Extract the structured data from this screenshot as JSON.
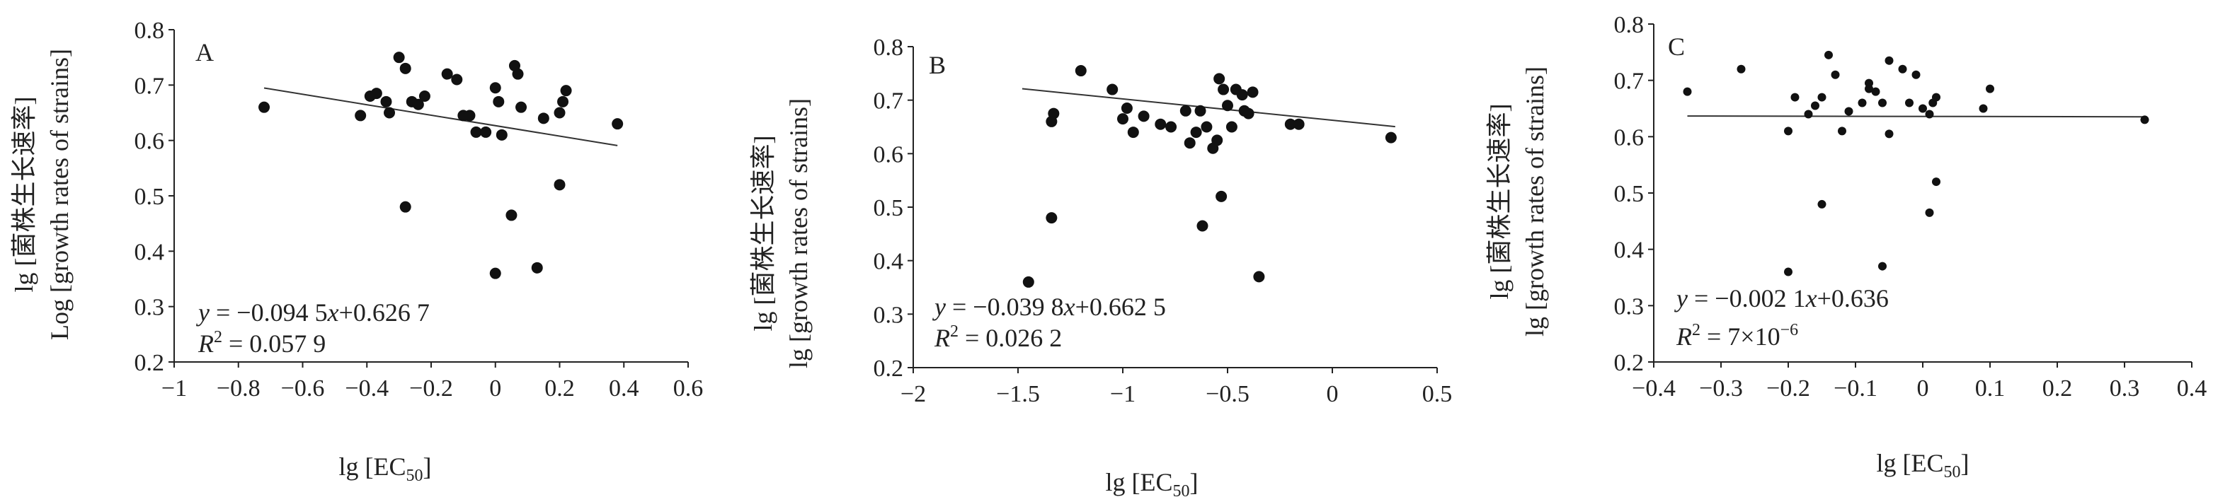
{
  "chart_data": [
    {
      "type": "scatter",
      "panel_label": "A",
      "ylabel": [
        "lg [菌株生长速率]",
        "Log [growth rates of strains]"
      ],
      "xlabel": {
        "main": "lg [EC",
        "sub": "50",
        "close": "]"
      },
      "xlim": [
        -1,
        0.6
      ],
      "ylim": [
        0.2,
        0.8
      ],
      "xticks": [
        -1,
        -0.8,
        -0.6,
        -0.4,
        -0.2,
        0,
        0.2,
        0.4,
        0.6
      ],
      "xtick_labels": [
        "−1",
        "−0.8",
        "−0.6",
        "−0.4",
        "−0.2",
        "0",
        "0.2",
        "0.4",
        "0.6"
      ],
      "yticks": [
        0.2,
        0.3,
        0.4,
        0.5,
        0.6,
        0.7,
        0.8
      ],
      "ytick_labels": [
        "0.2",
        "0.3",
        "0.4",
        "0.5",
        "0.6",
        "0.7",
        "0.8"
      ],
      "trendline": {
        "slope": -0.0945,
        "intercept": 0.6267,
        "x_range": [
          -0.72,
          0.38
        ]
      },
      "equation": {
        "y": "y",
        "eq": " = −0.094 5",
        "x": "x",
        "rest": "+0.626 7"
      },
      "r2": {
        "r": "R",
        "sup": "2",
        "rest": " = 0.057 9"
      },
      "points": [
        [
          -0.72,
          0.66
        ],
        [
          -0.42,
          0.645
        ],
        [
          -0.39,
          0.68
        ],
        [
          -0.37,
          0.685
        ],
        [
          -0.34,
          0.67
        ],
        [
          -0.33,
          0.65
        ],
        [
          -0.3,
          0.75
        ],
        [
          -0.28,
          0.73
        ],
        [
          -0.26,
          0.67
        ],
        [
          -0.24,
          0.665
        ],
        [
          -0.22,
          0.68
        ],
        [
          -0.28,
          0.48
        ],
        [
          -0.15,
          0.72
        ],
        [
          -0.12,
          0.71
        ],
        [
          -0.1,
          0.645
        ],
        [
          -0.08,
          0.645
        ],
        [
          -0.06,
          0.615
        ],
        [
          -0.03,
          0.615
        ],
        [
          0,
          0.695
        ],
        [
          0.01,
          0.67
        ],
        [
          0.02,
          0.61
        ],
        [
          0.06,
          0.735
        ],
        [
          0.07,
          0.72
        ],
        [
          0.08,
          0.66
        ],
        [
          0.05,
          0.465
        ],
        [
          0,
          0.36
        ],
        [
          0.15,
          0.64
        ],
        [
          0.13,
          0.37
        ],
        [
          0.2,
          0.65
        ],
        [
          0.2,
          0.52
        ],
        [
          0.21,
          0.67
        ],
        [
          0.22,
          0.69
        ],
        [
          0.38,
          0.63
        ]
      ]
    },
    {
      "type": "scatter",
      "panel_label": "B",
      "ylabel": [
        "lg [菌株生长速率]",
        "lg [growth rates of strains]"
      ],
      "xlabel": {
        "main": "lg [EC",
        "sub": "50",
        "close": "]"
      },
      "xlim": [
        -2,
        0.5
      ],
      "ylim": [
        0.2,
        0.8
      ],
      "xticks": [
        -2,
        -1.5,
        -1,
        -0.5,
        0,
        0.5
      ],
      "xtick_labels": [
        "−2",
        "−1.5",
        "−1",
        "−0.5",
        "0",
        "0.5"
      ],
      "yticks": [
        0.2,
        0.3,
        0.4,
        0.5,
        0.6,
        0.7,
        0.8
      ],
      "ytick_labels": [
        "0.2",
        "0.3",
        "0.4",
        "0.5",
        "0.6",
        "0.7",
        "0.8"
      ],
      "trendline": {
        "slope": -0.0398,
        "intercept": 0.6625,
        "x_range": [
          -1.48,
          0.3
        ]
      },
      "equation": {
        "y": "y",
        "eq": " = −0.039 8",
        "x": "x",
        "rest": "+0.662 5"
      },
      "r2": {
        "r": "R",
        "sup": "2",
        "rest": " = 0.026 2"
      },
      "points": [
        [
          -1.45,
          0.36
        ],
        [
          -1.34,
          0.66
        ],
        [
          -1.33,
          0.675
        ],
        [
          -1.34,
          0.48
        ],
        [
          -1.2,
          0.755
        ],
        [
          -1.05,
          0.72
        ],
        [
          -1,
          0.665
        ],
        [
          -0.98,
          0.685
        ],
        [
          -0.95,
          0.64
        ],
        [
          -0.9,
          0.67
        ],
        [
          -0.82,
          0.655
        ],
        [
          -0.77,
          0.65
        ],
        [
          -0.7,
          0.68
        ],
        [
          -0.68,
          0.62
        ],
        [
          -0.63,
          0.68
        ],
        [
          -0.65,
          0.64
        ],
        [
          -0.6,
          0.65
        ],
        [
          -0.57,
          0.61
        ],
        [
          -0.55,
          0.625
        ],
        [
          -0.54,
          0.74
        ],
        [
          -0.52,
          0.72
        ],
        [
          -0.5,
          0.69
        ],
        [
          -0.48,
          0.65
        ],
        [
          -0.46,
          0.72
        ],
        [
          -0.43,
          0.71
        ],
        [
          -0.42,
          0.68
        ],
        [
          -0.4,
          0.675
        ],
        [
          -0.38,
          0.715
        ],
        [
          -0.62,
          0.465
        ],
        [
          -0.53,
          0.52
        ],
        [
          -0.35,
          0.37
        ],
        [
          -0.2,
          0.655
        ],
        [
          -0.16,
          0.655
        ],
        [
          0.28,
          0.63
        ]
      ]
    },
    {
      "type": "scatter",
      "panel_label": "C",
      "ylabel": [
        "lg [菌株生长速率]",
        "lg [growth rates of strains]"
      ],
      "xlabel": {
        "main": "lg [EC",
        "sub": "50",
        "close": "]"
      },
      "xlim": [
        -0.4,
        0.4
      ],
      "ylim": [
        0.2,
        0.8
      ],
      "xticks": [
        -0.4,
        -0.3,
        -0.2,
        -0.1,
        0,
        0.1,
        0.2,
        0.3,
        0.4
      ],
      "xtick_labels": [
        "−0.4",
        "−0.3",
        "−0.2",
        "−0.1",
        "0",
        "0.1",
        "0.2",
        "0.3",
        "0.4"
      ],
      "yticks": [
        0.2,
        0.3,
        0.4,
        0.5,
        0.6,
        0.7,
        0.8
      ],
      "ytick_labels": [
        "0.2",
        "0.3",
        "0.4",
        "0.5",
        "0.6",
        "0.7",
        "0.8"
      ],
      "trendline": {
        "slope": -0.0021,
        "intercept": 0.636,
        "x_range": [
          -0.35,
          0.33
        ]
      },
      "equation": {
        "y": "y",
        "eq": " = −0.002 1",
        "x": "x",
        "rest": "+0.636"
      },
      "r2": {
        "r": "R",
        "sup": "2",
        "rest": " = 7×10",
        "rest_sup": "−6"
      },
      "points": [
        [
          -0.35,
          0.68
        ],
        [
          -0.27,
          0.72
        ],
        [
          -0.2,
          0.61
        ],
        [
          -0.19,
          0.67
        ],
        [
          -0.17,
          0.64
        ],
        [
          -0.16,
          0.655
        ],
        [
          -0.15,
          0.67
        ],
        [
          -0.14,
          0.745
        ],
        [
          -0.13,
          0.71
        ],
        [
          -0.12,
          0.61
        ],
        [
          -0.11,
          0.645
        ],
        [
          -0.09,
          0.66
        ],
        [
          -0.08,
          0.685
        ],
        [
          -0.08,
          0.695
        ],
        [
          -0.07,
          0.68
        ],
        [
          -0.06,
          0.66
        ],
        [
          -0.05,
          0.735
        ],
        [
          -0.05,
          0.605
        ],
        [
          -0.03,
          0.72
        ],
        [
          -0.02,
          0.66
        ],
        [
          -0.01,
          0.71
        ],
        [
          0,
          0.65
        ],
        [
          0.01,
          0.64
        ],
        [
          0.015,
          0.66
        ],
        [
          0.02,
          0.67
        ],
        [
          0.02,
          0.52
        ],
        [
          0.01,
          0.465
        ],
        [
          -0.15,
          0.48
        ],
        [
          -0.2,
          0.36
        ],
        [
          -0.06,
          0.37
        ],
        [
          0.09,
          0.65
        ],
        [
          0.1,
          0.685
        ],
        [
          0.33,
          0.63
        ]
      ]
    }
  ]
}
